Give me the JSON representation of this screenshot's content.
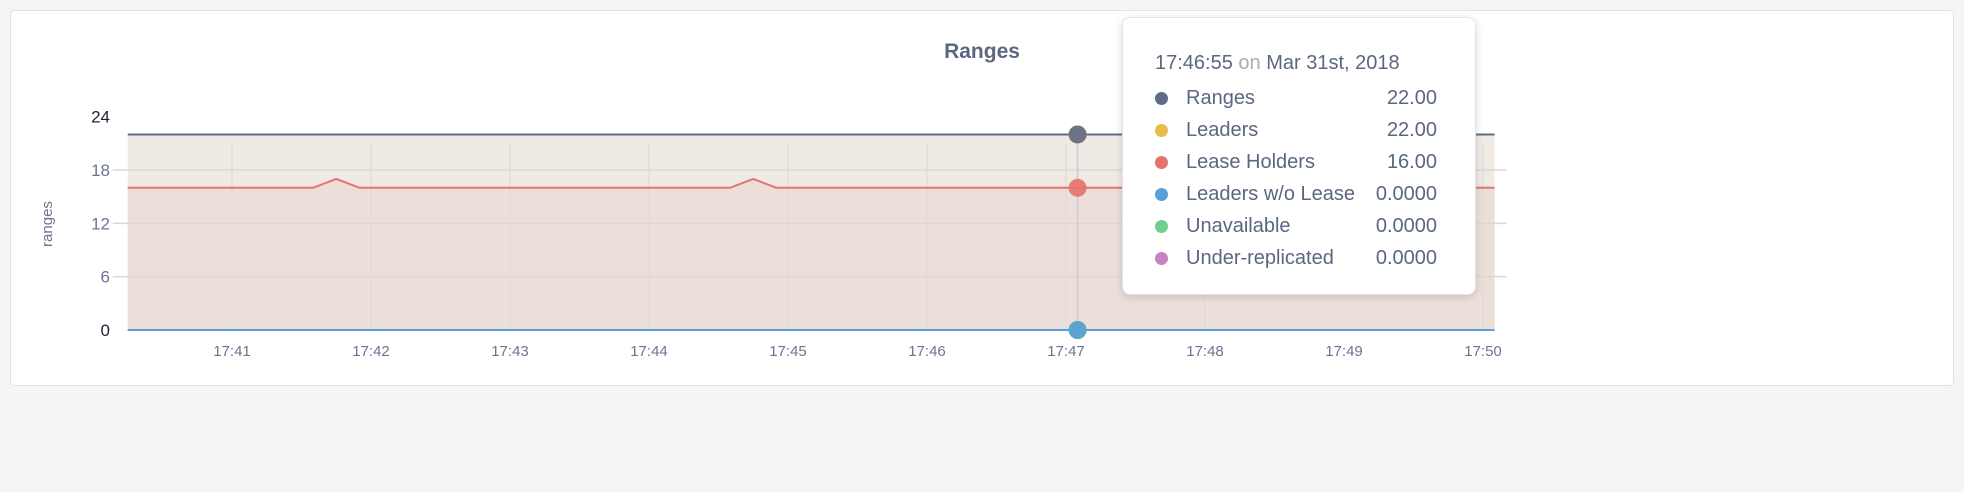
{
  "title": "Ranges",
  "tooltip": {
    "time": "17:46:55",
    "on": "on",
    "date": "Mar 31st, 2018",
    "rows": [
      {
        "label": "Ranges",
        "value": "22.00",
        "color": "#5f6c87"
      },
      {
        "label": "Leaders",
        "value": "22.00",
        "color": "#e9bb49"
      },
      {
        "label": "Lease Holders",
        "value": "16.00",
        "color": "#e5736c"
      },
      {
        "label": "Leaders w/o Lease",
        "value": "0.0000",
        "color": "#5aa0d6"
      },
      {
        "label": "Unavailable",
        "value": "0.0000",
        "color": "#6dd08f"
      },
      {
        "label": "Under-replicated",
        "value": "0.0000",
        "color": "#c981c2"
      }
    ]
  },
  "chart_data": {
    "type": "area",
    "title": "Ranges",
    "ylabel": "ranges",
    "xlabel": "",
    "ylim": [
      0,
      24
    ],
    "yticks": [
      "0",
      "6",
      "12",
      "18",
      "24"
    ],
    "xlim": [
      "17:40:15",
      "17:50:05"
    ],
    "xticks": [
      "17:41",
      "17:42",
      "17:43",
      "17:44",
      "17:45",
      "17:46",
      "17:47",
      "17:48",
      "17:49",
      "17:50"
    ],
    "grid": true,
    "hover_time": "17:47:05",
    "series": [
      {
        "name": "Ranges",
        "color": "#5f6c87",
        "fill": false,
        "points": [
          [
            "17:40:15",
            22
          ],
          [
            "17:50:05",
            22
          ]
        ]
      },
      {
        "name": "Leaders",
        "color": "#e9bb49",
        "fill": "#efebe4",
        "points": [
          [
            "17:40:15",
            22
          ],
          [
            "17:50:05",
            22
          ]
        ]
      },
      {
        "name": "Lease Holders",
        "color": "#e5736c",
        "fill": "#ecdfd9",
        "points": [
          [
            "17:40:15",
            16
          ],
          [
            "17:41:35",
            16
          ],
          [
            "17:41:45",
            17
          ],
          [
            "17:41:55",
            16
          ],
          [
            "17:44:35",
            16
          ],
          [
            "17:44:45",
            17
          ],
          [
            "17:44:55",
            16
          ],
          [
            "17:50:05",
            16
          ]
        ]
      },
      {
        "name": "Leaders w/o Lease",
        "color": "#5aa0d6",
        "fill": false,
        "points": [
          [
            "17:40:15",
            0
          ],
          [
            "17:50:05",
            0
          ]
        ]
      },
      {
        "name": "Unavailable",
        "color": "#6dd08f",
        "fill": false,
        "points": [
          [
            "17:40:15",
            0
          ],
          [
            "17:50:05",
            0
          ]
        ]
      },
      {
        "name": "Under-replicated",
        "color": "#c981c2",
        "fill": false,
        "points": [
          [
            "17:40:15",
            0
          ],
          [
            "17:50:05",
            0
          ]
        ]
      }
    ]
  }
}
